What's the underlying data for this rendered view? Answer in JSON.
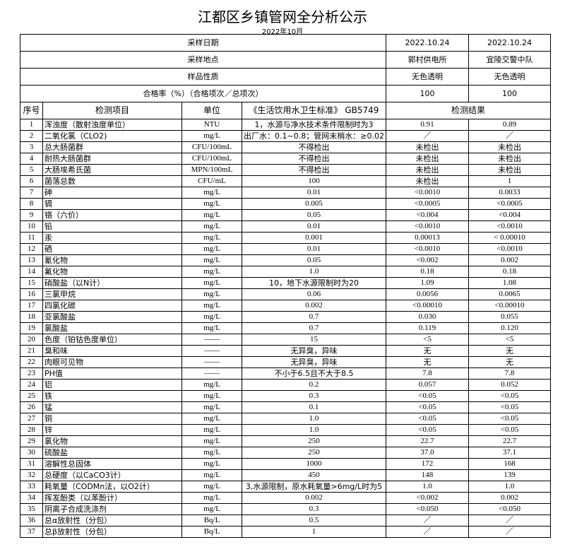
{
  "title": "江都区乡镇管网全分析公示",
  "subtitle": "2022年10月",
  "meta": [
    {
      "label": "采样日期",
      "v1": "2022.10.24",
      "v2": "2022.10.24"
    },
    {
      "label": "采样地点",
      "v1": "郭村供电所",
      "v2": "宜陵交警中队"
    },
    {
      "label": "样品性质",
      "v1": "无色透明",
      "v2": "无色透明"
    },
    {
      "label": "合格率（%）（合格项次／总项次）",
      "v1": "100",
      "v2": "100"
    }
  ],
  "headers": {
    "seq": "序号",
    "item": "检测项目",
    "unit": "单位",
    "standard": "《生活饮用水卫生标准》 GB5749",
    "result": "检测结果"
  },
  "rows": [
    [
      "1",
      "浑浊度（散射浊度单位）",
      "NTU",
      "1，水源与净水技术条件限制时为3",
      "0.91",
      "0.89"
    ],
    [
      "2",
      "二氧化氯（CLO2)",
      "mg/L",
      "出厂水：0.1~0.8；管网末梢水：≥0.02",
      "／",
      "／"
    ],
    [
      "3",
      "总大肠菌群",
      "CFU/100mL",
      "不得检出",
      "未检出",
      "未检出"
    ],
    [
      "4",
      "耐热大肠菌群",
      "CFU/100mL",
      "不得检出",
      "未检出",
      "未检出"
    ],
    [
      "5",
      "大肠埃希氏菌",
      "MPN/100mL",
      "不得检出",
      "未检出",
      "未检出"
    ],
    [
      "6",
      "菌落总数",
      "CFU/mL",
      "100",
      "未检出",
      "1"
    ],
    [
      "7",
      "砷",
      "mg/L",
      "0.01",
      "<0.0010",
      "0.0033"
    ],
    [
      "8",
      "镉",
      "mg/L",
      "0.005",
      "<0.0005",
      "<0.0005"
    ],
    [
      "9",
      "铬（六价）",
      "mg/L",
      "0.05",
      "<0.004",
      "<0.004"
    ],
    [
      "10",
      "铅",
      "mg/L",
      "0.01",
      "<0.0010",
      "<0.0010"
    ],
    [
      "11",
      "汞",
      "mg/L",
      "0.001",
      "0.00013",
      "< 0.00010"
    ],
    [
      "12",
      "硒",
      "mg/L",
      "0.01",
      "<0.0010",
      "<0.0010"
    ],
    [
      "13",
      "氰化物",
      "mg/L",
      "0.05",
      "<0.002",
      "0.002"
    ],
    [
      "14",
      "氟化物",
      "mg/L",
      "1.0",
      "0.18",
      "0.18"
    ],
    [
      "15",
      "硝酸盐（以N计）",
      "mg/L",
      "10，地下水源限制时为20",
      "1.09",
      "1.08"
    ],
    [
      "16",
      "三氯甲烷",
      "mg/L",
      "0.06",
      "0.0056",
      "0.0065"
    ],
    [
      "17",
      "四氯化碳",
      "mg/L",
      "0.002",
      "<0.00010",
      "<0.00010"
    ],
    [
      "18",
      "亚氯酸盐",
      "mg/L",
      "0.7",
      "0.030",
      "0.055"
    ],
    [
      "19",
      "氯酸盐",
      "mg/L",
      "0.7",
      "0.119",
      "0.120"
    ],
    [
      "20",
      "色度（铂钴色度单位）",
      "——",
      "15",
      "<5",
      "<5"
    ],
    [
      "21",
      "臭和味",
      "——",
      "无异臭，异味",
      "无",
      "无"
    ],
    [
      "22",
      "肉眼可见物",
      "——",
      "无异臭，异味",
      "无",
      "无"
    ],
    [
      "23",
      "PH值",
      "——",
      "不小于6.5且不大于8.5",
      "7.8",
      "7.8"
    ],
    [
      "24",
      "铝",
      "mg/L",
      "0.2",
      "0.057",
      "0.052"
    ],
    [
      "25",
      "铁",
      "mg/L",
      "0.3",
      "<0.05",
      "<0.05"
    ],
    [
      "26",
      "锰",
      "mg/L",
      "0.1",
      "<0.05",
      "<0.05"
    ],
    [
      "27",
      "铜",
      "mg/L",
      "1.0",
      "<0.05",
      "<0.05"
    ],
    [
      "28",
      "锌",
      "mg/L",
      "1.0",
      "<0.05",
      "<0.05"
    ],
    [
      "29",
      "氯化物",
      "mg/L",
      "250",
      "22.7",
      "22.7"
    ],
    [
      "30",
      "硫酸盐",
      "mg/L",
      "250",
      "37.0",
      "37.1"
    ],
    [
      "31",
      "溶解性总固体",
      "mg/L",
      "1000",
      "172",
      "168"
    ],
    [
      "32",
      "总硬度（以CaCO3计）",
      "mg/L",
      "450",
      "148",
      "139"
    ],
    [
      "33",
      "耗氧量（CODMn法，以O2计）",
      "mg/L",
      "3,水源限制，原水耗氧量>6mg/L时为5",
      "1.0",
      "1.0"
    ],
    [
      "34",
      "挥发酚类（以苯酚计）",
      "mg/L",
      "0.002",
      "<0.002",
      "0.002"
    ],
    [
      "35",
      "阴离子合成洗涤剂",
      "mg/L",
      "0.3",
      "<0.050",
      "<0.050"
    ],
    [
      "36",
      "总α放射性（分包）",
      "Bq/L",
      "0.5",
      "／",
      "／"
    ],
    [
      "37",
      "总β放射性（分包）",
      "Bq/L",
      "1",
      "／",
      "／"
    ]
  ]
}
